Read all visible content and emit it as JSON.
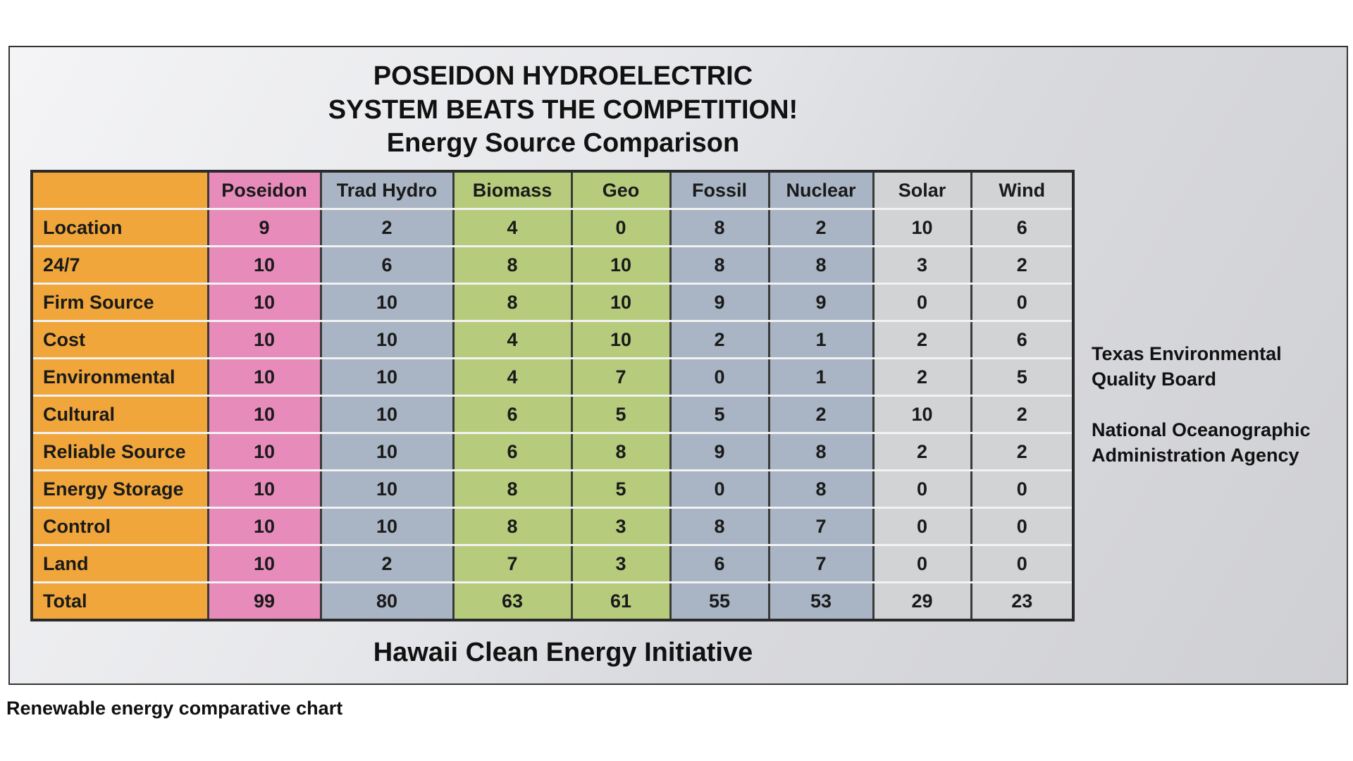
{
  "header": {
    "title": [
      "POSEIDON HYDROELECTRIC",
      "SYSTEM BEATS THE COMPETITION!"
    ],
    "subtitle": "Energy Source Comparison"
  },
  "table": {
    "columns": [
      "Poseidon",
      "Trad Hydro",
      "Biomass",
      "Geo",
      "Fossil",
      "Nuclear",
      "Solar",
      "Wind"
    ],
    "rows": [
      [
        "Location",
        9,
        2,
        4,
        0,
        8,
        2,
        10,
        6
      ],
      [
        "24/7",
        10,
        6,
        8,
        10,
        8,
        8,
        3,
        2
      ],
      [
        "Firm Source",
        10,
        10,
        8,
        10,
        9,
        9,
        0,
        0
      ],
      [
        "Cost",
        10,
        10,
        4,
        10,
        2,
        1,
        2,
        6
      ],
      [
        "Environmental",
        10,
        10,
        4,
        7,
        0,
        1,
        2,
        5
      ],
      [
        "Cultural",
        10,
        10,
        6,
        5,
        5,
        2,
        10,
        2
      ],
      [
        "Reliable Source",
        10,
        10,
        6,
        8,
        9,
        8,
        2,
        2
      ],
      [
        "Energy Storage",
        10,
        10,
        8,
        5,
        0,
        8,
        0,
        0
      ],
      [
        "Control",
        10,
        10,
        8,
        3,
        8,
        7,
        0,
        0
      ],
      [
        "Land",
        10,
        2,
        7,
        3,
        6,
        7,
        0,
        0
      ],
      [
        "Total",
        99,
        80,
        63,
        61,
        55,
        53,
        29,
        23
      ]
    ]
  },
  "notes": [
    [
      "Texas Environmental",
      "Quality Board"
    ],
    [
      "National Oceanographic",
      "Administration Agency"
    ]
  ],
  "footer": "Hawaii Clean Energy Initiative",
  "caption": "Renewable energy comparative chart"
}
